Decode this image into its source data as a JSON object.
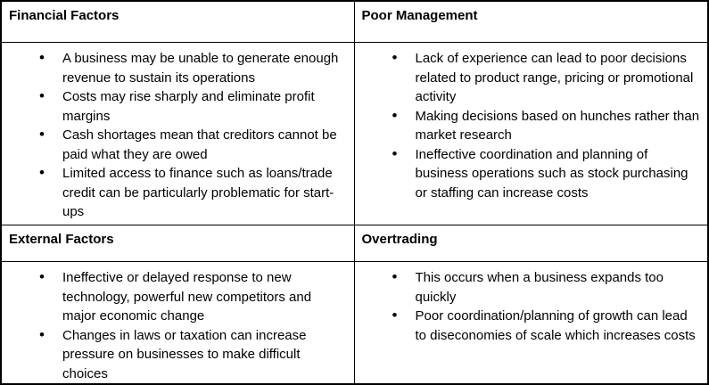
{
  "table": {
    "sections": [
      {
        "title": "Financial Factors",
        "bullets": [
          "A business may be unable to generate enough revenue to sustain its operations",
          "Costs may rise sharply and eliminate profit margins",
          "Cash shortages mean that creditors cannot be paid what they are owed",
          "Limited access to finance such as loans/trade credit can be particularly problematic for start-ups"
        ]
      },
      {
        "title": "Poor Management",
        "bullets": [
          "Lack of experience can lead to poor decisions related to product range, pricing or promotional activity",
          "Making decisions based on hunches rather than market research",
          "Ineffective coordination and planning of business operations such as stock purchasing or staffing can increase costs"
        ]
      },
      {
        "title": "External Factors",
        "bullets": [
          "Ineffective or delayed response to new technology, powerful new competitors and major economic change",
          "Changes in laws or taxation can increase pressure on businesses to make difficult choices"
        ]
      },
      {
        "title": "Overtrading",
        "bullets": [
          "This occurs when a business expands too quickly",
          "Poor coordination/planning of growth can lead to diseconomies of scale which increases costs"
        ]
      }
    ],
    "colors": {
      "border": "#000000",
      "text": "#000000",
      "background": "#ffffff"
    }
  }
}
